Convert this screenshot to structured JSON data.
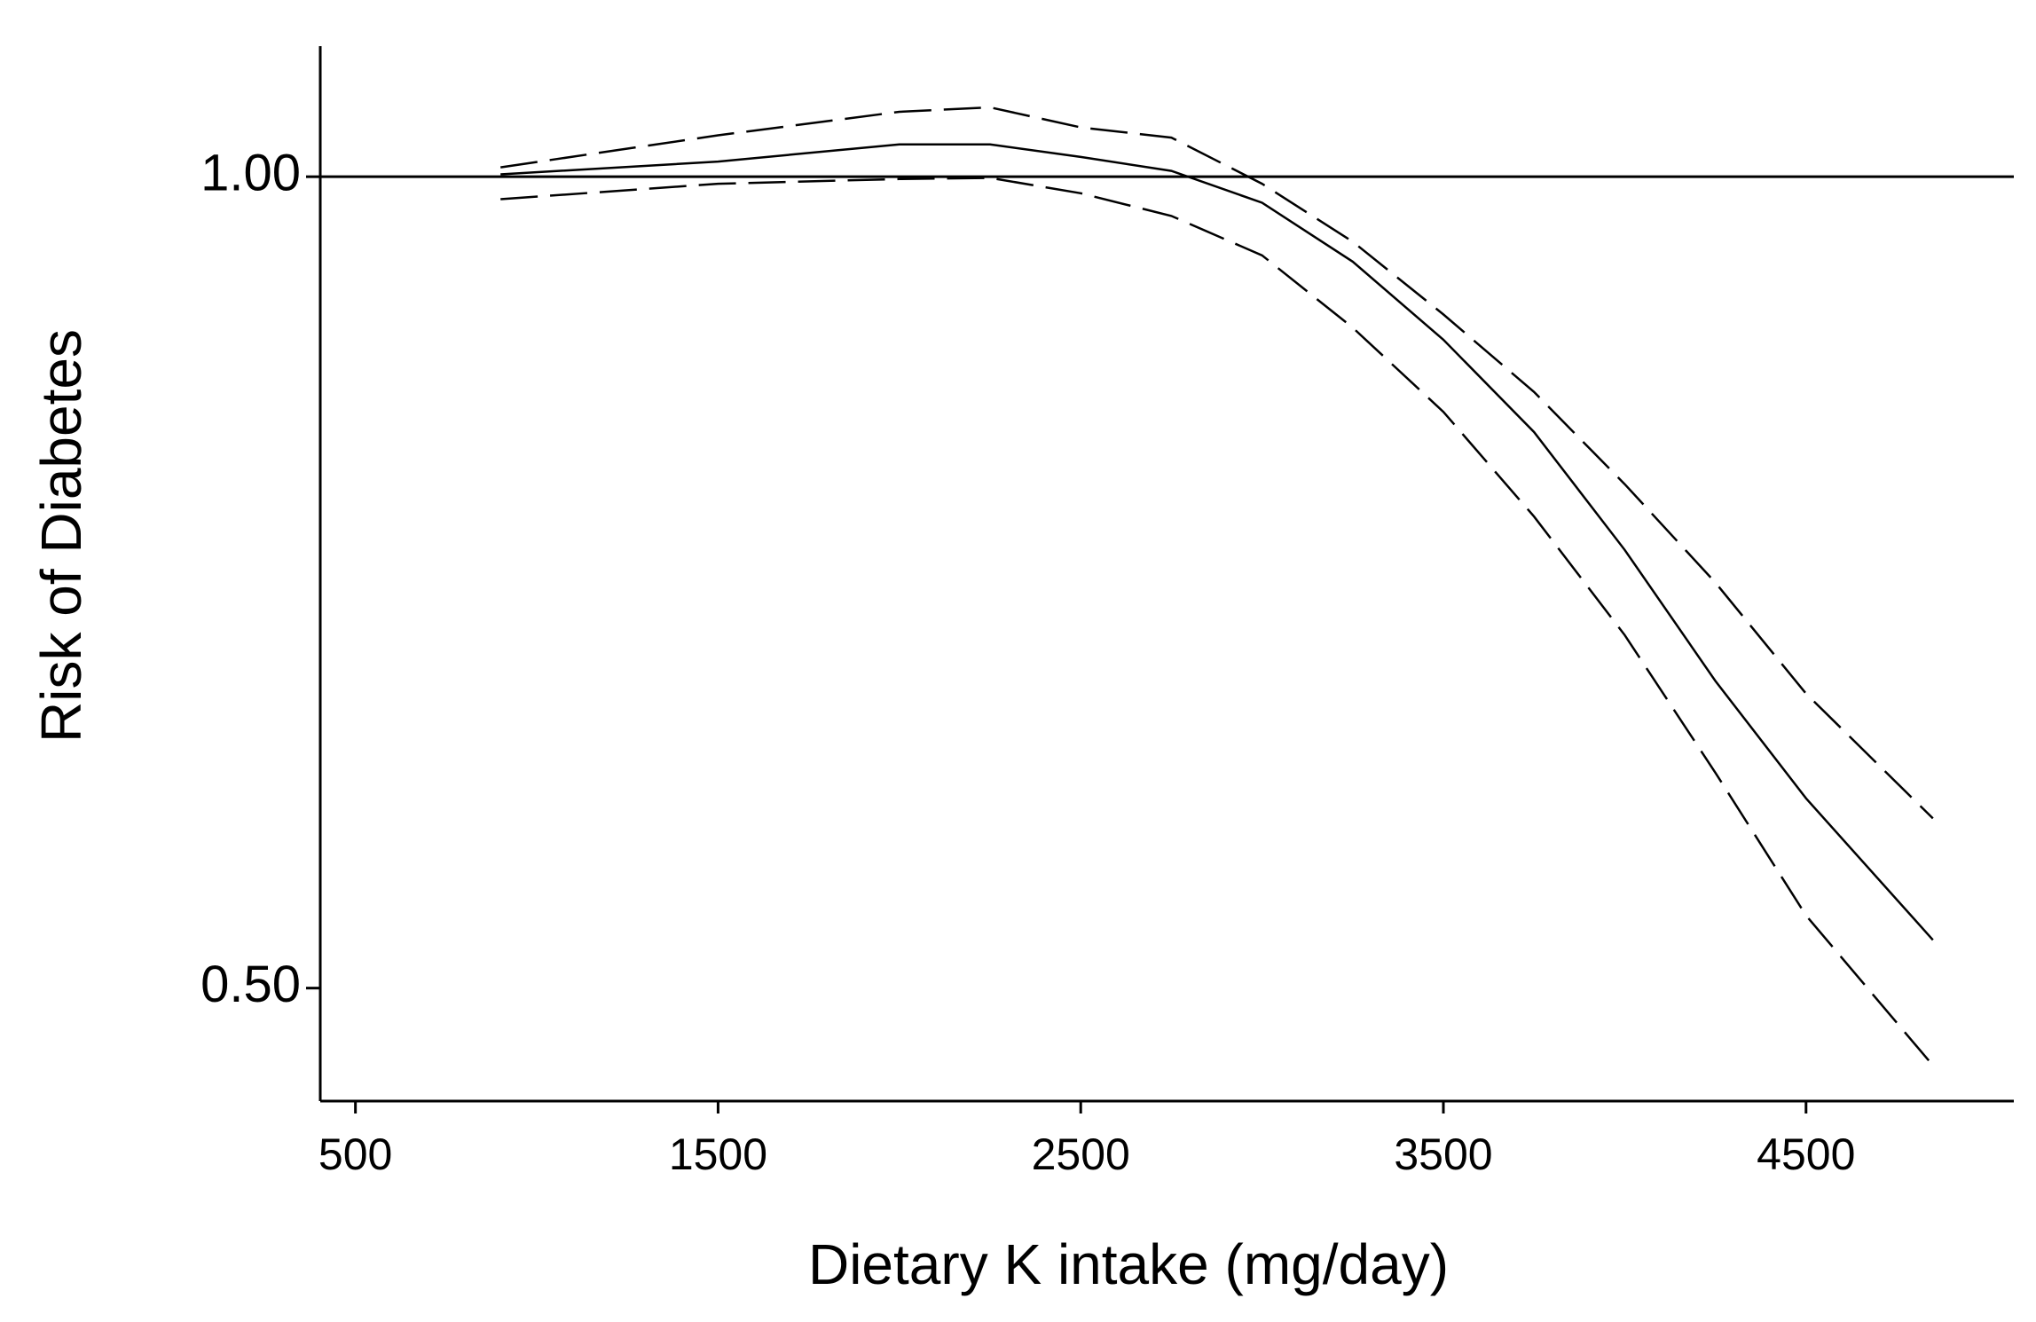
{
  "chart_data": {
    "type": "line",
    "x_label": "Dietary K intake (mg/day)",
    "y_label": "Risk of Diabetes",
    "x": [
      900,
      1500,
      2000,
      2250,
      2500,
      2750,
      3000,
      3250,
      3500,
      3750,
      4000,
      4250,
      4500,
      4850
    ],
    "series": [
      {
        "color": "#000000",
        "dashed": false,
        "values": [
          1.002,
          1.013,
          1.028,
          1.028,
          1.017,
          1.005,
          0.978,
          0.93,
          0.87,
          0.804,
          0.727,
          0.65,
          0.588,
          0.521
        ]
      },
      {
        "color": "#000000",
        "dashed": true,
        "values": [
          1.008,
          1.036,
          1.057,
          1.061,
          1.043,
          1.034,
          0.994,
          0.946,
          0.889,
          0.832,
          0.769,
          0.707,
          0.643,
          0.578
        ]
      },
      {
        "color": "#000000",
        "dashed": true,
        "values": [
          0.981,
          0.994,
          0.998,
          0.999,
          0.986,
          0.967,
          0.935,
          0.879,
          0.818,
          0.748,
          0.676,
          0.601,
          0.532,
          0.468
        ]
      }
    ],
    "reference_line": 1,
    "xlim": [
      403,
      5073
    ],
    "xticks": [
      500,
      1500,
      2500,
      3500,
      4500
    ],
    "ylim": [
      0.454,
      1.118
    ],
    "yticks": [
      {
        "value": 0.5,
        "label": "0.50"
      },
      {
        "value": 1,
        "label": "1.00"
      }
    ],
    "y_log": true,
    "grid": false
  }
}
